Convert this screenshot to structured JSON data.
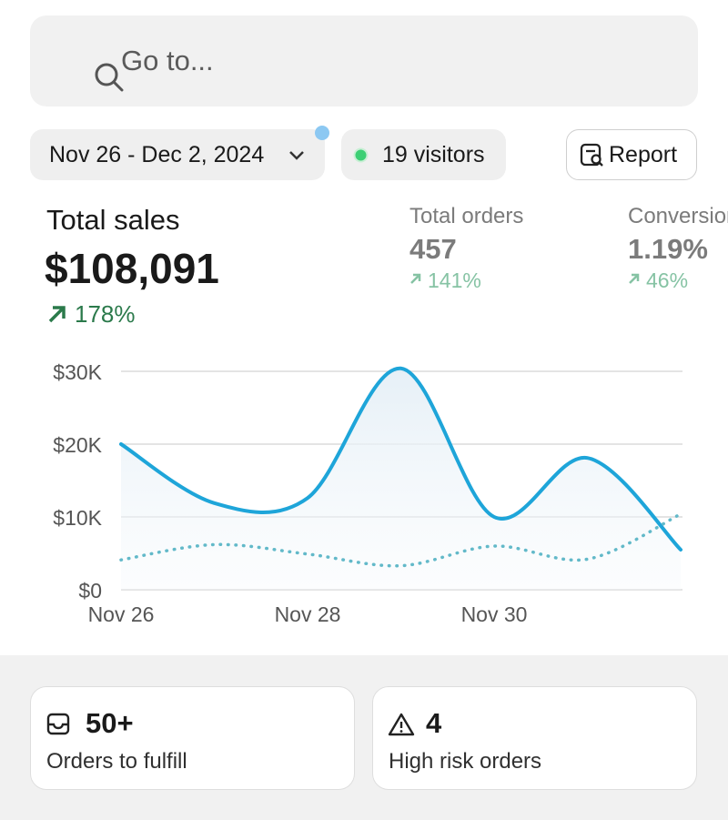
{
  "search": {
    "placeholder": "Go to..."
  },
  "filters": {
    "date_range": "Nov 26 - Dec 2, 2024",
    "visitors": "19 visitors",
    "report": "Report"
  },
  "metrics": [
    {
      "label": "Total sales",
      "value": "$108,091",
      "change": "178%"
    },
    {
      "label": "Total orders",
      "value": "457",
      "change": "141%"
    },
    {
      "label": "Conversion",
      "value": "1.19%",
      "change": "46%"
    }
  ],
  "chart_data": {
    "type": "line",
    "categories": [
      "Nov 26",
      null,
      "Nov 28",
      null,
      "Nov 30",
      null,
      null
    ],
    "series": [
      {
        "color": "#1ea5d9",
        "style": "solid",
        "area": true,
        "values": [
          20000,
          11900,
          12600,
          30400,
          10000,
          18100,
          5500
        ]
      },
      {
        "color": "#62b9c9",
        "style": "dotted",
        "area": false,
        "values": [
          4100,
          6200,
          4900,
          3300,
          6000,
          4200,
          10400
        ]
      }
    ],
    "ylim": [
      0,
      30000
    ],
    "yticks": [
      {
        "value": 0,
        "label": "$0"
      },
      {
        "value": 10000,
        "label": "$10K"
      },
      {
        "value": 20000,
        "label": "$20K"
      },
      {
        "value": 30000,
        "label": "$30K"
      }
    ],
    "grid": true
  },
  "cards": [
    {
      "value": "50+",
      "label": "Orders to fulfill"
    },
    {
      "value": "4",
      "label": "High risk orders"
    }
  ]
}
